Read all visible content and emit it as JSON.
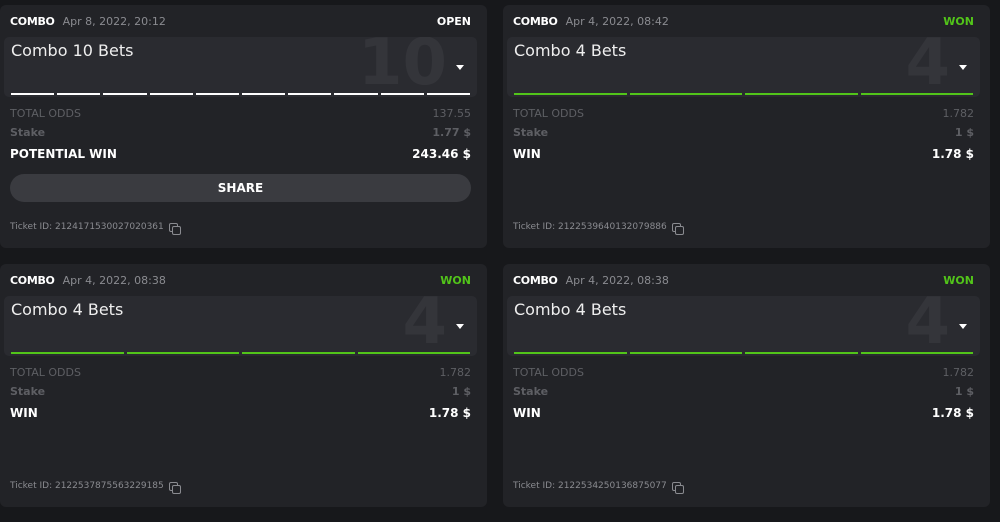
{
  "colors": {
    "won": "#52c41a",
    "open": "#ffffff"
  },
  "tickets": [
    {
      "type": "COMBO",
      "date": "Apr 8, 2022, 20:12",
      "status": "OPEN",
      "title": "Combo 10 Bets",
      "count": "10",
      "legs": 10,
      "leg_color": "#ffffff",
      "odds_label": "TOTAL ODDS",
      "odds": "137.55",
      "stake_label": "Stake",
      "stake": "1.77 $",
      "win_label": "POTENTIAL WIN",
      "win": "243.46 $",
      "share": "SHARE",
      "ticket_id": "Ticket ID: 2124171530027020361"
    },
    {
      "type": "COMBO",
      "date": "Apr 4, 2022, 08:42",
      "status": "WON",
      "title": "Combo 4 Bets",
      "count": "4",
      "legs": 4,
      "leg_color": "#52c41a",
      "odds_label": "TOTAL ODDS",
      "odds": "1.782",
      "stake_label": "Stake",
      "stake": "1 $",
      "win_label": "WIN",
      "win": "1.78 $",
      "ticket_id": "Ticket ID: 2122539640132079886"
    },
    {
      "type": "COMBO",
      "date": "Apr 4, 2022, 08:38",
      "status": "WON",
      "title": "Combo 4 Bets",
      "count": "4",
      "legs": 4,
      "leg_color": "#52c41a",
      "odds_label": "TOTAL ODDS",
      "odds": "1.782",
      "stake_label": "Stake",
      "stake": "1 $",
      "win_label": "WIN",
      "win": "1.78 $",
      "ticket_id": "Ticket ID: 2122537875563229185"
    },
    {
      "type": "COMBO",
      "date": "Apr 4, 2022, 08:38",
      "status": "WON",
      "title": "Combo 4 Bets",
      "count": "4",
      "legs": 4,
      "leg_color": "#52c41a",
      "odds_label": "TOTAL ODDS",
      "odds": "1.782",
      "stake_label": "Stake",
      "stake": "1 $",
      "win_label": "WIN",
      "win": "1.78 $",
      "ticket_id": "Ticket ID: 2122534250136875077"
    }
  ]
}
